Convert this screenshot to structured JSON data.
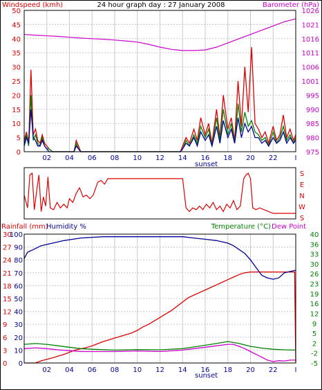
{
  "header": {
    "title": "24 hour graph day : 27 January 2008"
  },
  "colors": {
    "wind_speed": "#dd0000",
    "wind_gust": "#008000",
    "wind_avg": "#000099",
    "barometer": "#cc00cc",
    "direction": "#dd0000",
    "rainfall": "#dd0000",
    "humidity": "#000099",
    "temperature": "#008000",
    "dew_point": "#cc00cc",
    "grid": "#c8c8c8",
    "frame": "#000000"
  },
  "chart_data": [
    {
      "id": "wind-barometer",
      "type": "line",
      "title": "24 hour graph day : 27 January 2008",
      "ylabel_left": "Windspeed (kmh)",
      "ylabel_right": "Barometer (hPa)",
      "xlim": [
        0,
        24
      ],
      "ylim_left": [
        0,
        50
      ],
      "ylim_right": [
        975,
        1025
      ],
      "x_ticks": [
        "02",
        "04",
        "06",
        "08",
        "10",
        "12",
        "14",
        "16",
        "18",
        "20",
        "22",
        "I"
      ],
      "x_tick_positions": [
        2,
        4,
        6,
        8,
        10,
        12,
        14,
        16,
        18,
        20,
        22,
        24
      ],
      "y_ticks_left": [
        0,
        5,
        10,
        15,
        20,
        25,
        30,
        35,
        40,
        45,
        50
      ],
      "y_ticks_right": [
        975,
        980,
        985,
        990,
        995,
        1001,
        1006,
        1011,
        1016,
        1021,
        1026
      ],
      "annotation": "sunset",
      "annotation_x": 16.1,
      "grid": true,
      "barometer": {
        "x": [
          0,
          1,
          2,
          3,
          4,
          5,
          6,
          7,
          8,
          9,
          10,
          11,
          12,
          13,
          14,
          15,
          16,
          17,
          18,
          19,
          20,
          21,
          22,
          23,
          24
        ],
        "y": [
          1016.5,
          1016.2,
          1016.0,
          1015.8,
          1015.5,
          1015.2,
          1015.0,
          1014.8,
          1014.5,
          1014.2,
          1013.8,
          1013.0,
          1012.0,
          1011.2,
          1010.8,
          1010.8,
          1011.0,
          1012.0,
          1013.5,
          1015.0,
          1016.5,
          1018.0,
          1019.5,
          1021.0,
          1022.0
        ]
      },
      "series": [
        {
          "key": "wind_speed",
          "x": [
            0,
            0.2,
            0.4,
            0.6,
            0.8,
            1.0,
            1.2,
            1.4,
            1.6,
            1.8,
            2.0,
            2.2,
            2.5,
            3.0,
            3.5,
            4.0,
            4.4,
            4.6,
            4.8,
            5.0,
            6,
            8,
            10,
            12,
            13.8,
            14.0,
            14.3,
            14.6,
            15.0,
            15.3,
            15.6,
            16.0,
            16.3,
            16.6,
            17.0,
            17.3,
            17.6,
            18.0,
            18.3,
            18.6,
            18.9,
            19.2,
            19.5,
            19.8,
            20.1,
            20.4,
            20.7,
            21.0,
            21.3,
            21.6,
            22.0,
            22.3,
            22.6,
            22.9,
            23.2,
            23.5,
            23.8,
            24.0
          ],
          "y": [
            4,
            7,
            3,
            29,
            6,
            8,
            4,
            3,
            6,
            3,
            2,
            1,
            0,
            0,
            0,
            0,
            0,
            4,
            2,
            0,
            0,
            0,
            0,
            0,
            0,
            2,
            5,
            3,
            8,
            4,
            12,
            6,
            10,
            3,
            15,
            5,
            20,
            8,
            12,
            4,
            25,
            9,
            30,
            14,
            37,
            10,
            8,
            5,
            7,
            3,
            9,
            4,
            6,
            13,
            5,
            8,
            4,
            6
          ]
        },
        {
          "key": "wind_gust",
          "x": [
            0,
            0.2,
            0.4,
            0.6,
            0.8,
            1.0,
            1.2,
            1.4,
            1.6,
            1.8,
            2.0,
            2.2,
            2.5,
            3.0,
            3.5,
            4.0,
            4.4,
            4.6,
            4.8,
            5.0,
            6,
            8,
            10,
            12,
            13.8,
            14.0,
            14.3,
            14.6,
            15.0,
            15.3,
            15.6,
            16.0,
            16.3,
            16.6,
            17.0,
            17.3,
            17.6,
            18.0,
            18.3,
            18.6,
            18.9,
            19.2,
            19.5,
            19.8,
            20.1,
            20.4,
            20.7,
            21.0,
            21.3,
            21.6,
            22.0,
            22.3,
            22.6,
            22.9,
            23.2,
            23.5,
            23.8,
            24.0
          ],
          "y": [
            3,
            6,
            2,
            20,
            4,
            6,
            3,
            2,
            5,
            2,
            1,
            1,
            0,
            0,
            0,
            0,
            0,
            3,
            1,
            0,
            0,
            0,
            0,
            0,
            0,
            1,
            4,
            2,
            6,
            3,
            9,
            5,
            8,
            2,
            12,
            4,
            15,
            6,
            10,
            3,
            17,
            7,
            14,
            9,
            11,
            7,
            6,
            4,
            5,
            2,
            7,
            3,
            5,
            9,
            4,
            6,
            3,
            5
          ]
        },
        {
          "key": "wind_avg",
          "x": [
            0,
            0.2,
            0.4,
            0.6,
            0.8,
            1.0,
            1.2,
            1.4,
            1.6,
            1.8,
            2.0,
            2.2,
            2.5,
            3.0,
            3.5,
            4.0,
            4.4,
            4.6,
            4.8,
            5.0,
            6,
            8,
            10,
            12,
            13.8,
            14.0,
            14.3,
            14.6,
            15.0,
            15.3,
            15.6,
            16.0,
            16.3,
            16.6,
            17.0,
            17.3,
            17.6,
            18.0,
            18.3,
            18.6,
            18.9,
            19.2,
            19.5,
            19.8,
            20.1,
            20.4,
            20.7,
            21.0,
            21.3,
            21.6,
            22.0,
            22.3,
            22.6,
            22.9,
            23.2,
            23.5,
            23.8,
            24.0
          ],
          "y": [
            2,
            5,
            3,
            15,
            5,
            4,
            2,
            2,
            4,
            2,
            1,
            0,
            0,
            0,
            0,
            0,
            0,
            2,
            1,
            0,
            0,
            0,
            0,
            0,
            0,
            1,
            3,
            2,
            5,
            2,
            7,
            4,
            6,
            2,
            9,
            3,
            11,
            5,
            8,
            3,
            12,
            5,
            10,
            7,
            9,
            5,
            5,
            3,
            4,
            2,
            5,
            3,
            4,
            7,
            3,
            5,
            3,
            4
          ]
        }
      ]
    },
    {
      "id": "wind-direction",
      "type": "line",
      "xlim": [
        0,
        24
      ],
      "direction_labels": [
        "S",
        "E",
        "N",
        "W",
        "S"
      ],
      "grid": false,
      "series": [
        {
          "key": "direction",
          "x": [
            0,
            0.3,
            0.5,
            0.7,
            0.9,
            1.1,
            1.3,
            1.5,
            1.7,
            1.9,
            2.1,
            2.3,
            2.6,
            2.9,
            3.2,
            3.5,
            3.8,
            4.0,
            4.3,
            4.6,
            4.9,
            5.2,
            5.5,
            5.8,
            6.1,
            6.5,
            6.8,
            7.1,
            7.4,
            8,
            10,
            12,
            14,
            14.3,
            14.6,
            14.9,
            15.2,
            15.5,
            15.8,
            16.1,
            16.4,
            16.7,
            17.0,
            17.3,
            17.6,
            17.9,
            18.2,
            18.5,
            18.8,
            19.1,
            19.4,
            19.6,
            19.8,
            20.0,
            20.2,
            20.5,
            20.8,
            21.2,
            21.6,
            22,
            23,
            24
          ],
          "y": [
            1.0,
            0.3,
            2.1,
            2.2,
            0.2,
            1.2,
            2.1,
            0.1,
            0.9,
            0.4,
            2.0,
            0.3,
            0.2,
            0.6,
            0.3,
            0.5,
            0.3,
            0.8,
            0.6,
            1.1,
            1.4,
            0.9,
            1.0,
            0.8,
            1.0,
            1.7,
            1.8,
            1.6,
            1.9,
            1.9,
            1.9,
            1.9,
            1.9,
            0.3,
            0.1,
            0.3,
            0.2,
            0.4,
            0.2,
            0.5,
            0.3,
            0.6,
            0.2,
            0.4,
            0.1,
            0.5,
            0.3,
            0.7,
            0.2,
            0.4,
            1.9,
            2.1,
            2.2,
            1.9,
            0.3,
            0.2,
            0.3,
            0.2,
            0.1,
            0.0,
            0.0,
            0.0
          ]
        }
      ]
    },
    {
      "id": "rain-humidity-temp",
      "type": "line",
      "ylabel_left": "Rainfall (mm)",
      "ylabel_left2": "Humidity %",
      "ylabel_right": "Temperature (°C)",
      "ylabel_right2": "Dew Point",
      "xlim": [
        0,
        24
      ],
      "x_ticks": [
        "02",
        "04",
        "06",
        "08",
        "10",
        "12",
        "14",
        "16",
        "18",
        "20",
        "22",
        "I"
      ],
      "x_tick_positions": [
        2,
        4,
        6,
        8,
        10,
        12,
        14,
        16,
        18,
        20,
        22,
        24
      ],
      "y_ticks_rain": [
        0,
        3,
        6,
        9,
        12,
        15,
        18,
        21,
        24,
        27,
        30
      ],
      "y_ticks_humidity": [
        0,
        10,
        20,
        30,
        40,
        50,
        60,
        70,
        80,
        90,
        100
      ],
      "y_ticks_temp": [
        -5,
        -2,
        2,
        5,
        9,
        12,
        16,
        19,
        23,
        26,
        30,
        33,
        36,
        40
      ],
      "ylim_rain": [
        0,
        30
      ],
      "ylim_humidity": [
        0,
        100
      ],
      "ylim_temp": [
        -5,
        40
      ],
      "annotation": "sunset",
      "annotation_x": 16.1,
      "grid": true,
      "series": [
        {
          "key": "rainfall",
          "x": [
            0,
            1,
            1.5,
            2.5,
            3.5,
            4.5,
            5.5,
            6,
            6.5,
            7,
            7.5,
            8,
            8.5,
            9,
            9.5,
            10,
            10.5,
            11,
            11.5,
            12,
            12.5,
            13,
            13.5,
            14,
            14.5,
            15,
            15.5,
            16,
            16.5,
            17,
            17.5,
            18,
            18.5,
            19,
            19.5,
            20,
            21,
            22,
            23,
            23.9,
            24
          ],
          "y": [
            0,
            0,
            0.5,
            1.2,
            2.0,
            3.0,
            3.6,
            4.0,
            4.5,
            5.0,
            5.4,
            5.8,
            6.2,
            6.6,
            7.0,
            7.6,
            8.4,
            9.0,
            9.8,
            10.6,
            11.4,
            12.2,
            13.2,
            14.2,
            15.2,
            15.8,
            16.4,
            17.0,
            17.6,
            18.2,
            18.8,
            19.4,
            20.0,
            20.6,
            21.0,
            21.2,
            21.2,
            21.2,
            21.2,
            21.2,
            0
          ]
        },
        {
          "key": "humidity",
          "x": [
            0,
            0.3,
            0.8,
            1.5,
            2.5,
            3.5,
            5,
            7,
            9,
            11,
            13,
            14,
            15,
            16,
            17,
            18,
            18.5,
            19,
            19.5,
            20,
            20.5,
            21,
            21.5,
            22,
            22.5,
            23,
            23.5,
            24
          ],
          "y": [
            81,
            86,
            88,
            91,
            93,
            95,
            97,
            98,
            98,
            98,
            98,
            98,
            97,
            96,
            95,
            93,
            91,
            88,
            85,
            80,
            74,
            68,
            66,
            65,
            66,
            70,
            71,
            72
          ]
        },
        {
          "key": "temperature",
          "x": [
            0,
            1,
            2,
            3,
            4,
            5,
            6,
            8,
            10,
            12,
            14,
            15,
            16,
            17,
            18,
            19,
            20,
            21,
            22,
            23,
            24
          ],
          "y": [
            1.5,
            1.8,
            1.5,
            1.0,
            0.5,
            0.0,
            -0.2,
            -0.5,
            -0.3,
            -0.4,
            0.0,
            0.6,
            1.2,
            1.8,
            2.5,
            1.8,
            0.8,
            0.2,
            -0.2,
            -0.4,
            -0.5
          ]
        },
        {
          "key": "dew_point",
          "x": [
            0,
            1,
            2,
            3,
            4,
            5,
            6,
            8,
            10,
            12,
            14,
            15,
            16,
            17,
            18,
            18.5,
            19,
            19.5,
            20,
            20.5,
            21,
            21.5,
            22,
            22.5,
            23,
            23.5,
            24
          ],
          "y": [
            0.0,
            0.3,
            0.0,
            -0.4,
            -0.7,
            -1.0,
            -1.0,
            -1.0,
            -0.8,
            -1.0,
            -0.5,
            0.0,
            0.5,
            1.0,
            1.5,
            1.5,
            0.8,
            0.0,
            -1.0,
            -2.0,
            -3.0,
            -4.0,
            -4.5,
            -4.2,
            -4.3,
            -4.0,
            -4.0
          ]
        }
      ]
    }
  ]
}
